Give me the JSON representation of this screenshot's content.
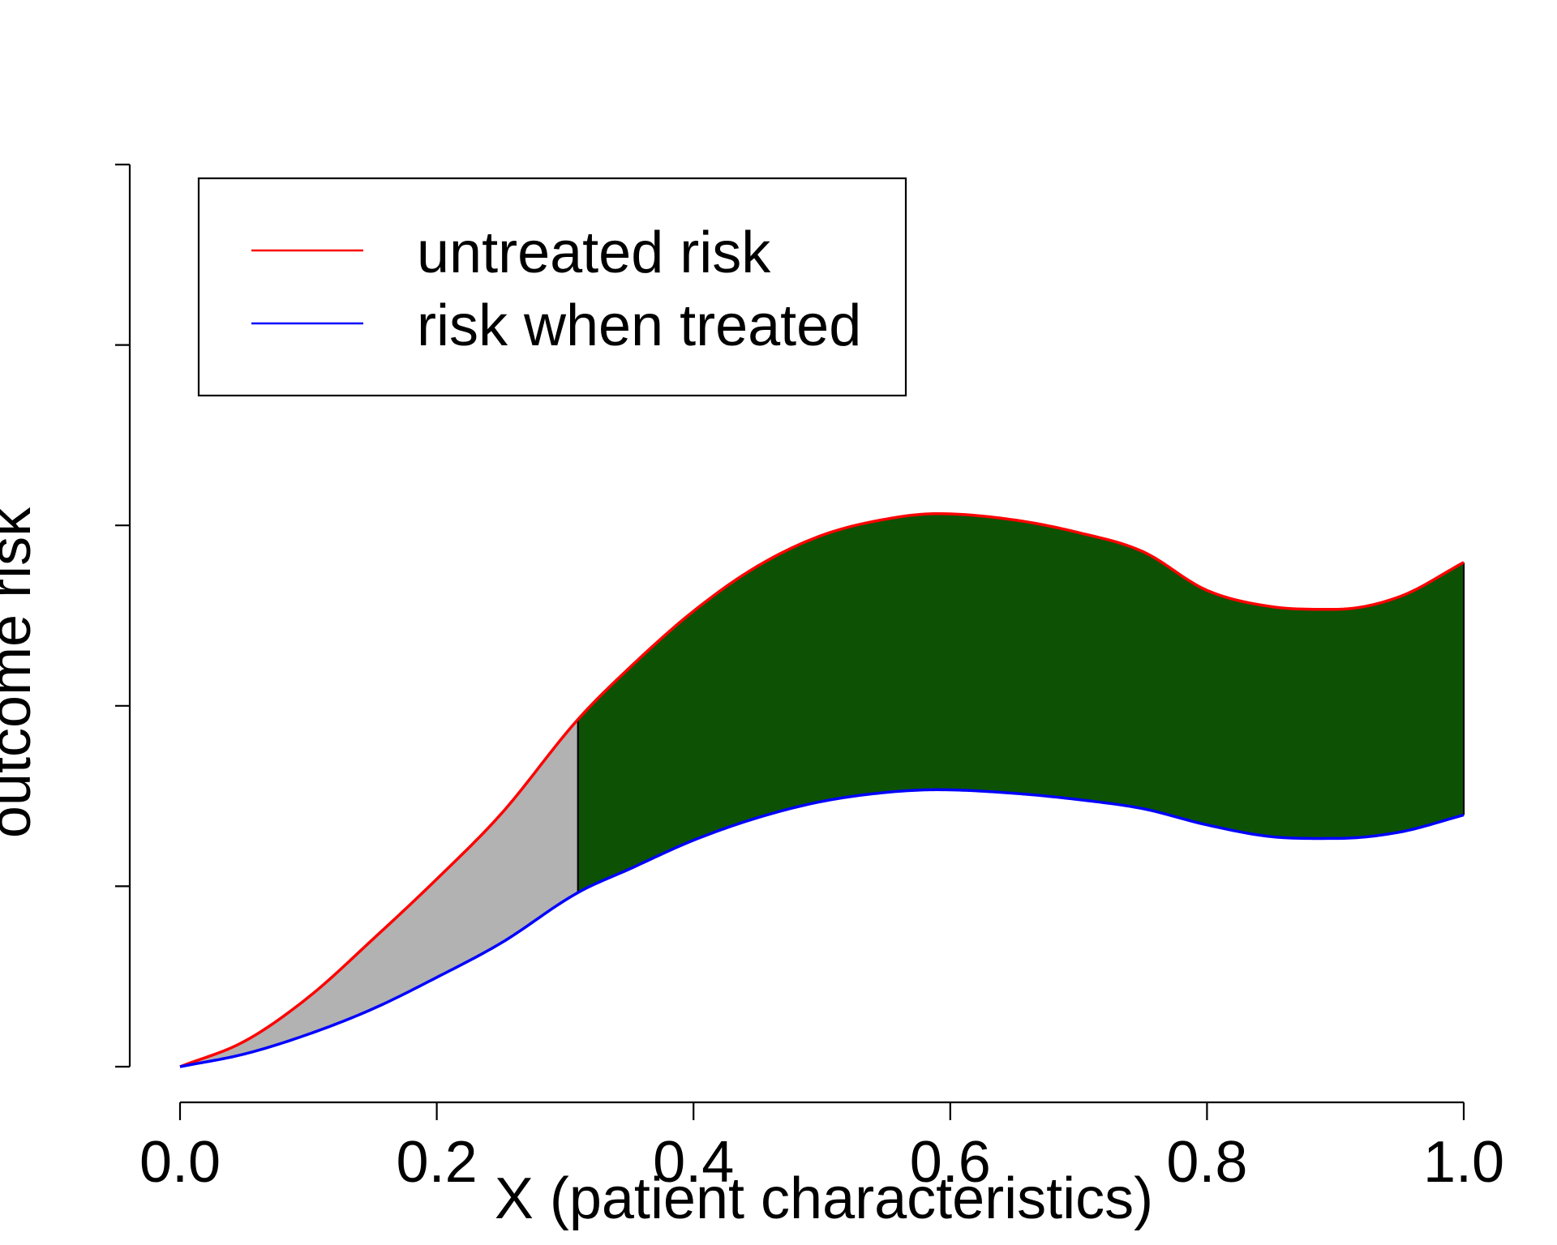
{
  "chart_data": {
    "type": "area",
    "title": "",
    "xlabel": "X (patient characteristics)",
    "ylabel": "outcome risk",
    "xlim": [
      0.0,
      1.0
    ],
    "ylim": [
      0.0,
      1.0
    ],
    "x_ticks": [
      "0.0",
      "0.2",
      "0.4",
      "0.6",
      "0.8",
      "1.0"
    ],
    "x_tick_values": [
      0.0,
      0.2,
      0.4,
      0.6,
      0.8,
      1.0
    ],
    "y_tick_values": [
      0.0,
      0.2,
      0.4,
      0.6,
      0.8,
      1.0
    ],
    "y_ticks_labeled": false,
    "threshold_x": 0.31,
    "fill_colors": {
      "below_threshold": "#b2b2b2",
      "above_threshold": "#0d5204"
    },
    "series": [
      {
        "name": "untreated risk",
        "color": "#ff0000",
        "x": [
          0.0,
          0.05,
          0.1,
          0.15,
          0.2,
          0.25,
          0.31,
          0.35,
          0.4,
          0.45,
          0.5,
          0.55,
          0.59,
          0.65,
          0.7,
          0.75,
          0.8,
          0.85,
          0.9,
          0.95,
          1.0
        ],
        "y": [
          0.0,
          0.028,
          0.077,
          0.141,
          0.208,
          0.28,
          0.385,
          0.442,
          0.505,
          0.555,
          0.589,
          0.607,
          0.613,
          0.606,
          0.592,
          0.571,
          0.528,
          0.51,
          0.507,
          0.521,
          0.559
        ]
      },
      {
        "name": "risk when treated",
        "color": "#0000ff",
        "x": [
          0.0,
          0.05,
          0.1,
          0.15,
          0.2,
          0.25,
          0.31,
          0.35,
          0.4,
          0.45,
          0.5,
          0.55,
          0.59,
          0.65,
          0.7,
          0.75,
          0.8,
          0.85,
          0.9,
          0.95,
          1.0
        ],
        "y": [
          0.0,
          0.014,
          0.036,
          0.064,
          0.099,
          0.137,
          0.193,
          0.219,
          0.251,
          0.276,
          0.294,
          0.304,
          0.307,
          0.303,
          0.296,
          0.286,
          0.268,
          0.255,
          0.253,
          0.26,
          0.279
        ]
      }
    ],
    "legend": {
      "position": "top-left",
      "entries": [
        "untreated risk",
        "risk when treated"
      ]
    }
  }
}
